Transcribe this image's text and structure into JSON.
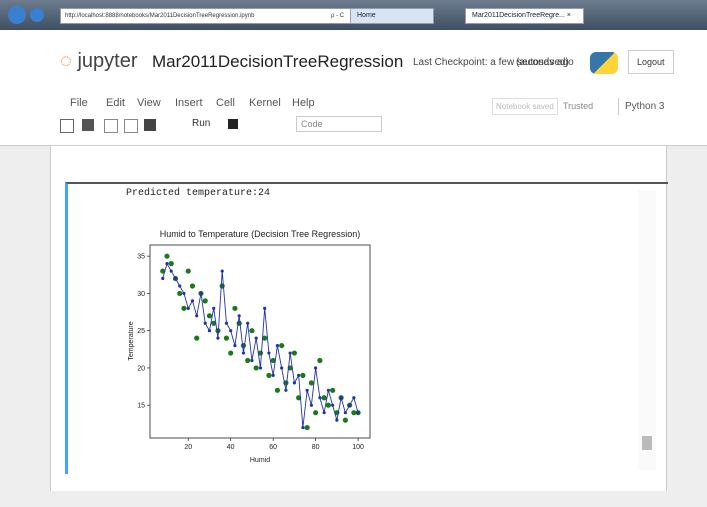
{
  "browser": {
    "url": "http://localhost:8888/notebooks/Mar2011DecisionTreeRegression.ipynb",
    "search": "ρ - C",
    "tabs": [
      "Home",
      "Mar2011DecisionTreeRegre... ×"
    ]
  },
  "header": {
    "logo": "jupyter",
    "notebook_name": "Mar2011DecisionTreeRegression",
    "checkpoint": "Last Checkpoint: a few seconds ago",
    "autosaved": "(autosaved)",
    "logout": "Logout"
  },
  "menu": {
    "items": [
      "File",
      "Edit",
      "View",
      "Insert",
      "Cell",
      "Kernel",
      "Help"
    ],
    "status": "Notebook saved",
    "trusted": "Trusted",
    "kernel": "Python 3"
  },
  "toolbar": {
    "run": "Run",
    "cell_type": "Code"
  },
  "output": {
    "text": "Predicted temperature:24"
  },
  "chart_data": {
    "type": "scatter",
    "title": "Humid to Temperature (Decision Tree Regression)",
    "x_label": "Humid",
    "y_label": "Temperature",
    "x": [
      8,
      10,
      12,
      14,
      16,
      18,
      20,
      22,
      24,
      26,
      28,
      30,
      32,
      34,
      36,
      38,
      40,
      42,
      44,
      46,
      48,
      50,
      52,
      54,
      56,
      58,
      60,
      62,
      64,
      66,
      68,
      70,
      72,
      74,
      76,
      78,
      80,
      82,
      84,
      86,
      88,
      90,
      92,
      94,
      96,
      98,
      100
    ],
    "series": [
      {
        "color": "#1a7a1a",
        "mode": "markers",
        "values": [
          33,
          35,
          34,
          32,
          30,
          28,
          33,
          31,
          24,
          30,
          29,
          27,
          26,
          25,
          31,
          24,
          22,
          28,
          26,
          23,
          21,
          25,
          20,
          22,
          24,
          19,
          21,
          17,
          23,
          18,
          20,
          22,
          16,
          19,
          12,
          18,
          14,
          21,
          16,
          15,
          17,
          14,
          16,
          13,
          15,
          14,
          14
        ]
      },
      {
        "color": "#2233aa",
        "mode": "lines+markers",
        "values": [
          32,
          34,
          33,
          32,
          31,
          30,
          28,
          29,
          27,
          30,
          26,
          25,
          28,
          24,
          33,
          26,
          25,
          23,
          27,
          22,
          26,
          21,
          24,
          20,
          28,
          22,
          19,
          23,
          20,
          17,
          22,
          18,
          19,
          12,
          17,
          15,
          20,
          16,
          14,
          17,
          15,
          13,
          16,
          14,
          15,
          16,
          14
        ]
      }
    ],
    "xlim": [
      2,
      105.6
    ],
    "ylim": [
      10.6,
      36.5
    ],
    "xticks": [
      20,
      40,
      60,
      80,
      100
    ],
    "yticks": [
      15,
      20,
      25,
      30,
      35
    ]
  }
}
